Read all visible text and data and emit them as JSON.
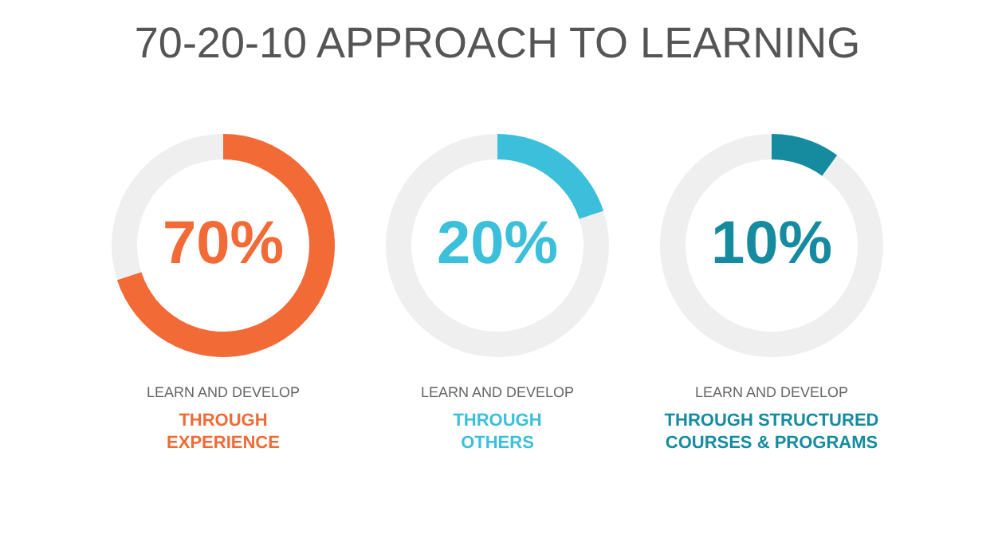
{
  "chart_data": [
    {
      "type": "other",
      "title": "70-20-10 APPROACH TO LEARNING"
    },
    {
      "type": "donut",
      "categories": [
        null,
        null
      ],
      "values": [
        70,
        30
      ],
      "colors": [
        "#f26a36",
        "#efefef"
      ],
      "value_labels": [
        "70%",
        null
      ],
      "subtitle": "LEARN AND DEVELOP",
      "title": "THROUGH\nEXPERIENCE"
    },
    {
      "type": "donut",
      "categories": [
        null,
        null
      ],
      "values": [
        20,
        80
      ],
      "colors": [
        "#3bbfda",
        "#efefef"
      ],
      "value_labels": [
        "20%",
        null
      ],
      "subtitle": "LEARN AND DEVELOP",
      "title": "THROUGH\nOTHERS"
    },
    {
      "type": "donut",
      "categories": [
        null,
        null
      ],
      "values": [
        10,
        90
      ],
      "colors": [
        "#168ba0",
        "#efefef"
      ],
      "value_labels": [
        "10%",
        null
      ],
      "subtitle": "LEARN AND DEVELOP",
      "title": "THROUGH STRUCTURED\nCOURSES & PROGRAMS"
    }
  ]
}
